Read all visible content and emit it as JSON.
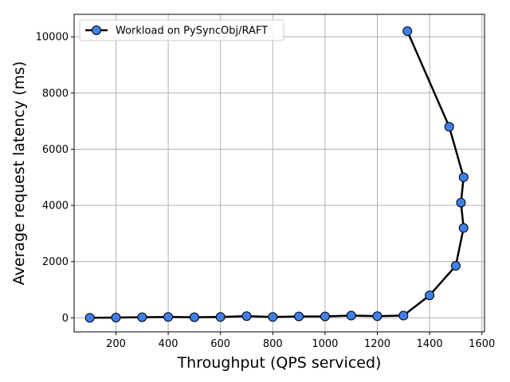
{
  "chart_data": {
    "type": "line",
    "title": "",
    "xlabel": "Throughput (QPS serviced)",
    "ylabel": "Average request latency (ms)",
    "xlim": [
      40,
      1610
    ],
    "ylim": [
      -500,
      10800
    ],
    "xticks": [
      200,
      400,
      600,
      800,
      1000,
      1200,
      1400,
      1600
    ],
    "yticks": [
      0,
      2000,
      4000,
      6000,
      8000,
      10000
    ],
    "grid": true,
    "legend_position": "top-left",
    "line_color": "#000000",
    "marker_color": "#3f7fea",
    "series": [
      {
        "name": "Workload on PySyncObj/RAFT",
        "x": [
          100,
          200,
          300,
          400,
          500,
          600,
          700,
          800,
          900,
          1000,
          1100,
          1200,
          1300,
          1400,
          1500,
          1530,
          1520,
          1530,
          1475,
          1315
        ],
        "y": [
          0,
          10,
          20,
          30,
          20,
          30,
          60,
          30,
          50,
          50,
          80,
          60,
          80,
          800,
          1850,
          3200,
          4100,
          5000,
          6800,
          10200
        ]
      }
    ]
  }
}
